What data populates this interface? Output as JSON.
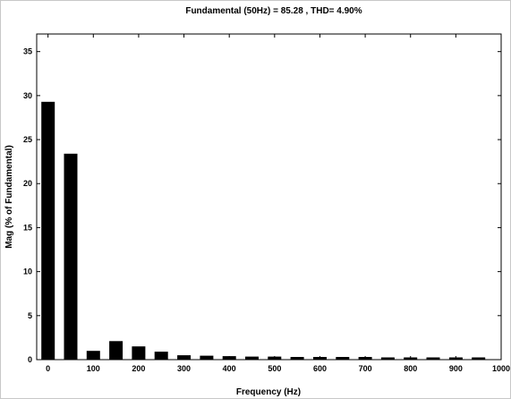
{
  "chart_data": {
    "type": "bar",
    "title": "Fundamental (50Hz) = 85.28 , THD= 4.90%",
    "xlabel": "Frequency (Hz)",
    "ylabel": "Mag (% of Fundamental)",
    "xlim": [
      -25,
      1000
    ],
    "ylim": [
      0,
      37
    ],
    "xticks": [
      0,
      100,
      200,
      300,
      400,
      500,
      600,
      700,
      800,
      900,
      1000
    ],
    "yticks": [
      0,
      5,
      10,
      15,
      20,
      25,
      30,
      35
    ],
    "bar_color": "#000000",
    "grid": false,
    "bars": [
      {
        "x": 0,
        "value": 29.3
      },
      {
        "x": 50,
        "value": 23.4
      },
      {
        "x": 100,
        "value": 1.0
      },
      {
        "x": 150,
        "value": 2.1
      },
      {
        "x": 200,
        "value": 1.5
      },
      {
        "x": 250,
        "value": 0.9
      },
      {
        "x": 300,
        "value": 0.5
      },
      {
        "x": 350,
        "value": 0.45
      },
      {
        "x": 400,
        "value": 0.4
      },
      {
        "x": 450,
        "value": 0.35
      },
      {
        "x": 500,
        "value": 0.35
      },
      {
        "x": 550,
        "value": 0.3
      },
      {
        "x": 600,
        "value": 0.3
      },
      {
        "x": 650,
        "value": 0.3
      },
      {
        "x": 700,
        "value": 0.3
      },
      {
        "x": 750,
        "value": 0.25
      },
      {
        "x": 800,
        "value": 0.25
      },
      {
        "x": 850,
        "value": 0.25
      },
      {
        "x": 900,
        "value": 0.25
      },
      {
        "x": 950,
        "value": 0.25
      }
    ]
  }
}
